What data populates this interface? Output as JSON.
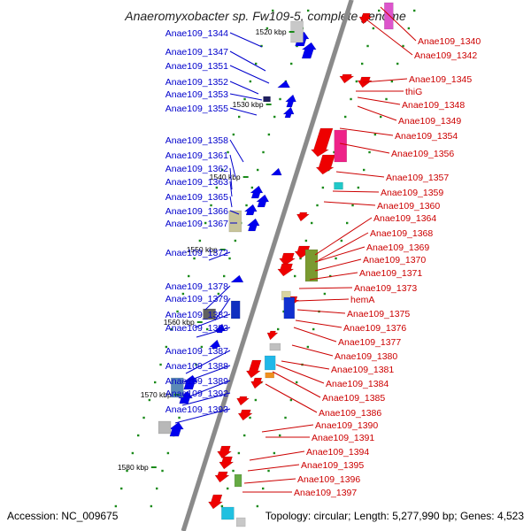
{
  "title": "Anaeromyxobacter sp. Fw109-5, complete genome",
  "footer": {
    "accession": "Accession: NC_009675",
    "summary": "Topology: circular; Length: 5,277,990 bp; Genes: 4,523"
  },
  "colors": {
    "backbone": "#8a8a8a",
    "forward_label": "#0000cc",
    "reverse_label": "#cc0000",
    "forward_gene": "#0000ee",
    "reverse_gene": "#ee0000",
    "tick": "#1a8a1a"
  },
  "scale_marks": [
    "1520 kbp",
    "1530 kbp",
    "1540 kbp",
    "1550 kbp",
    "1560 kbp",
    "1570 kbp",
    "1580 kbp"
  ],
  "left_labels": [
    "Anae109_1344",
    "Anae109_1347",
    "Anae109_1351",
    "Anae109_1352",
    "Anae109_1353",
    "Anae109_1355",
    "Anae109_1358",
    "Anae109_1361",
    "Anae109_1362",
    "Anae109_1363",
    "Anae109_1365",
    "Anae109_1366",
    "Anae109_1367",
    "Anae109_1372",
    "Anae109_1378",
    "Anae109_1379",
    "Anae109_1382",
    "Anae109_1383",
    "Anae109_1387",
    "Anae109_1388",
    "Anae109_1389",
    "Anae109_1392",
    "Anae109_1393"
  ],
  "right_labels": [
    "Anae109_1340",
    "Anae109_1342",
    "Anae109_1345",
    "thiG",
    "Anae109_1348",
    "Anae109_1349",
    "Anae109_1354",
    "Anae109_1356",
    "Anae109_1357",
    "Anae109_1359",
    "Anae109_1360",
    "Anae109_1364",
    "Anae109_1368",
    "Anae109_1369",
    "Anae109_1370",
    "Anae109_1371",
    "Anae109_1373",
    "hemA",
    "Anae109_1375",
    "Anae109_1376",
    "Anae109_1377",
    "Anae109_1380",
    "Anae109_1381",
    "Anae109_1384",
    "Anae109_1385",
    "Anae109_1386",
    "Anae109_1390",
    "Anae109_1391",
    "Anae109_1394",
    "Anae109_1395",
    "Anae109_1396",
    "Anae109_1397"
  ]
}
